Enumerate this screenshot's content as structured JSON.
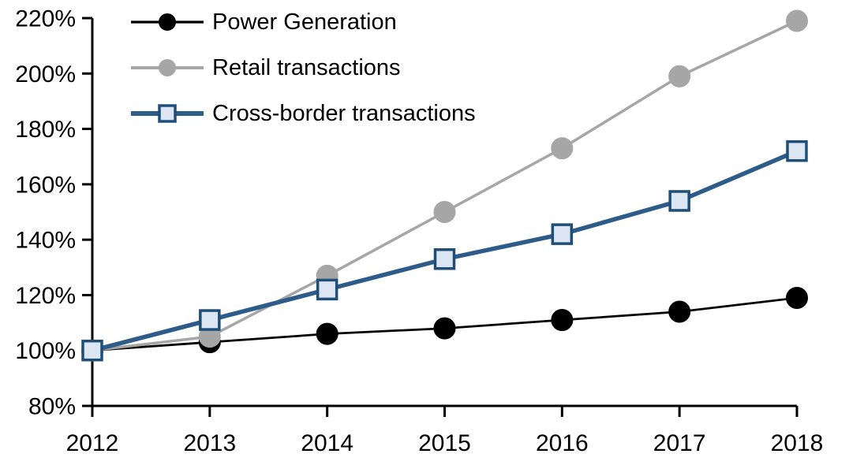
{
  "chart_data": {
    "type": "line",
    "title": "",
    "xlabel": "",
    "ylabel": "",
    "x": [
      2012,
      2013,
      2014,
      2015,
      2016,
      2017,
      2018
    ],
    "x_tick_labels": [
      "2012",
      "2013",
      "2014",
      "2015",
      "2016",
      "2017",
      "2018"
    ],
    "y_tick_labels": [
      "80%",
      "100%",
      "120%",
      "140%",
      "160%",
      "180%",
      "200%",
      "220%"
    ],
    "y_tick_values": [
      80,
      100,
      120,
      140,
      160,
      180,
      200,
      220
    ],
    "ylim": [
      80,
      220
    ],
    "grid": false,
    "legend_position": "top-left",
    "axis_color": "#000000",
    "series": [
      {
        "name": "Power Generation",
        "values": [
          100,
          103,
          106,
          108,
          111,
          114,
          119
        ],
        "line_color": "#000000",
        "line_width": 2.75,
        "marker": "circle",
        "marker_fill": "#000000",
        "marker_stroke": "#000000"
      },
      {
        "name": "Retail transactions",
        "values": [
          100,
          105,
          127,
          150,
          173,
          199,
          219
        ],
        "line_color": "#A6A6A6",
        "line_width": 3.5,
        "marker": "circle",
        "marker_fill": "#A6A6A6",
        "marker_stroke": "#A6A6A6"
      },
      {
        "name": "Cross-border transactions",
        "values": [
          100,
          111,
          122,
          133,
          142,
          154,
          172
        ],
        "line_color": "#2E5C8A",
        "line_width": 5.5,
        "marker": "square",
        "marker_fill": "#DCE6F2",
        "marker_stroke": "#1F4E79"
      }
    ]
  }
}
